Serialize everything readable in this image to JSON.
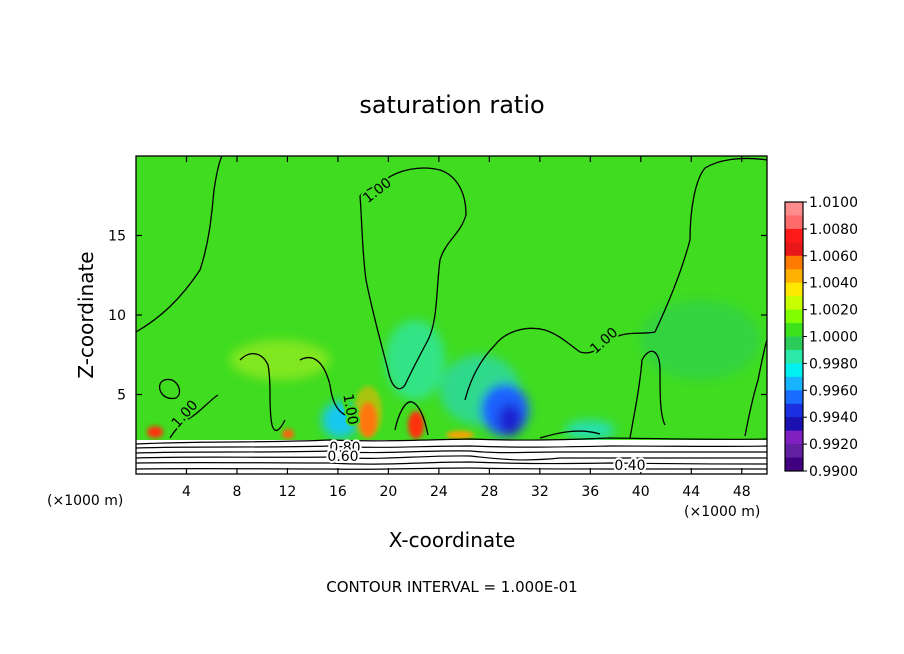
{
  "chart_data": {
    "type": "heatmap",
    "title": "saturation ratio",
    "xlabel": "X-coordinate",
    "ylabel": "Z-coordinate",
    "x_unit_left": "(×1000 m)",
    "x_unit_right": "(×1000 m)",
    "xlim": [
      0,
      50
    ],
    "ylim": [
      0,
      20
    ],
    "xticks": [
      4,
      8,
      12,
      16,
      20,
      24,
      28,
      32,
      36,
      40,
      44,
      48
    ],
    "yticks": [
      5,
      10,
      15
    ],
    "colorbar": {
      "levels": [
        "1.0100",
        "1.0080",
        "1.0060",
        "1.0040",
        "1.0020",
        "1.0000",
        "0.9980",
        "0.9960",
        "0.9940",
        "0.9920",
        "0.9900"
      ],
      "colors": [
        "#ff8c8c",
        "#ff6a6a",
        "#ff1a1a",
        "#e81818",
        "#ff7a00",
        "#ffb000",
        "#ffe800",
        "#c8ff00",
        "#7fff00",
        "#3de21d",
        "#2ccc5a",
        "#2ae8a8",
        "#00f0f0",
        "#18b4ff",
        "#1a6cff",
        "#1a30e0",
        "#1a10b0",
        "#8020c0",
        "#6020a0",
        "#400080"
      ]
    },
    "contour_labels": [
      "1.00",
      "1.00",
      "1.00",
      "1.00",
      "0.80",
      "0.60",
      "0.40"
    ],
    "footer": "CONTOUR INTERVAL = 1.000E-01"
  }
}
